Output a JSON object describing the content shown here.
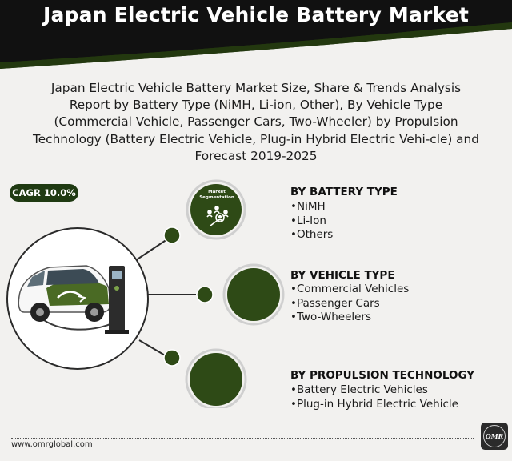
{
  "banner": {
    "title": "Japan Electric Vehicle Battery Market"
  },
  "subtitle": "Japan Electric Vehicle Battery Market Size, Share & Trends Analysis Report by Battery Type (NiMH, Li-ion, Other), By Vehicle Type (Commercial Vehicle, Passenger Cars, Two-Wheeler) by Propulsion Technology (Battery Electric Vehicle, Plug-in Hybrid Electric Vehi-cle) and Forecast 2019-2025",
  "cagr_badge": "CAGR 10.0%",
  "segmentation_label": "Market Segmentation",
  "segments": [
    {
      "title": "BY BATTERY TYPE",
      "items": [
        "NiMH",
        "Li-Ion",
        "Others"
      ]
    },
    {
      "title": "BY VEHICLE TYPE",
      "items": [
        "Commercial Vehicles",
        "Passenger Cars",
        "Two-Wheelers"
      ]
    },
    {
      "title": "BY PROPULSION TECHNOLOGY",
      "items": [
        "Battery Electric Vehicles",
        "Plug-in Hybrid Electric Vehicle"
      ]
    }
  ],
  "footer": {
    "url": "www.omrglobal.com",
    "logo_text": "OMR"
  },
  "colors": {
    "dark_green": "#2e4a16",
    "banner_black": "#111111",
    "banner_green": "#23380f",
    "background": "#f2f1ef"
  },
  "icons": [
    "segmentation-people-icon",
    "electric-car-illustration",
    "charging-station-icon",
    "omr-logo"
  ]
}
